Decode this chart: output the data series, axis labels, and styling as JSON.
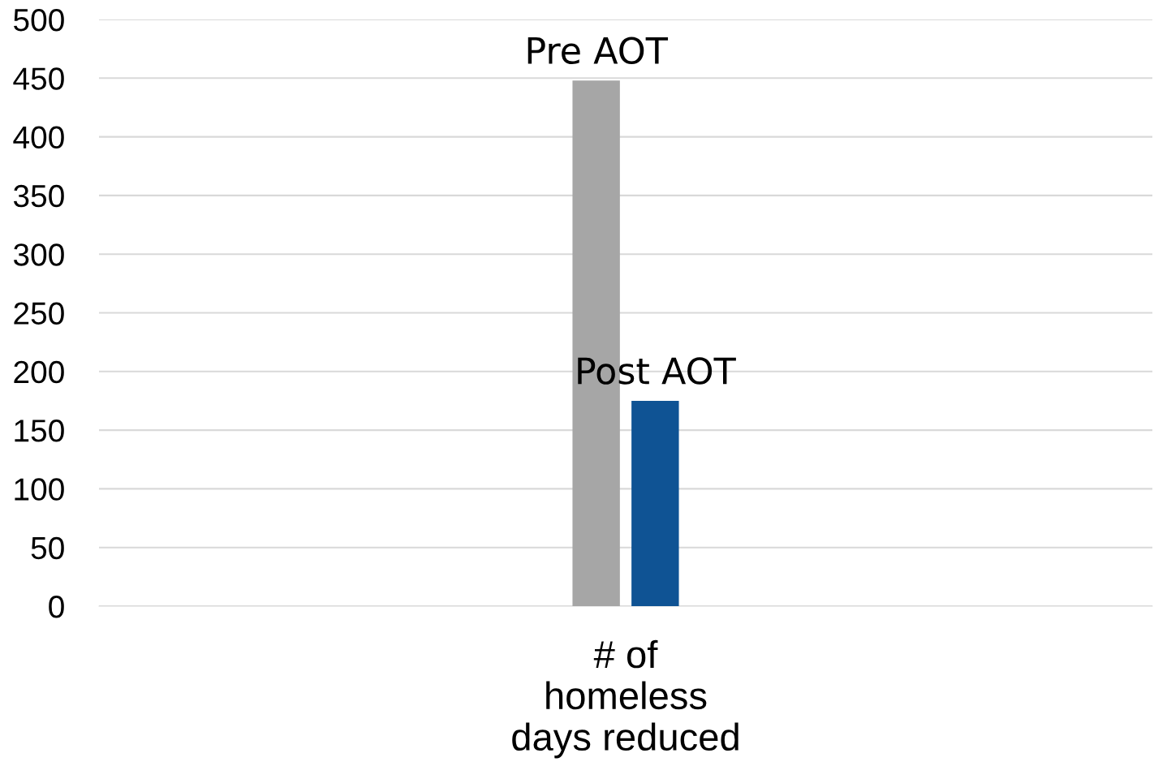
{
  "chart_data": {
    "type": "bar",
    "categories": [
      "# of\nhomeless\ndays reduced"
    ],
    "series": [
      {
        "name": "Pre AOT",
        "color": "#a6a6a6",
        "values": [
          448
        ]
      },
      {
        "name": "Post AOT",
        "color": "#0f5394",
        "values": [
          175
        ]
      }
    ],
    "ylim": [
      0,
      500
    ],
    "yticks": [
      0,
      50,
      100,
      150,
      200,
      250,
      300,
      350,
      400,
      450,
      500
    ],
    "grid": "y",
    "legend": false
  }
}
